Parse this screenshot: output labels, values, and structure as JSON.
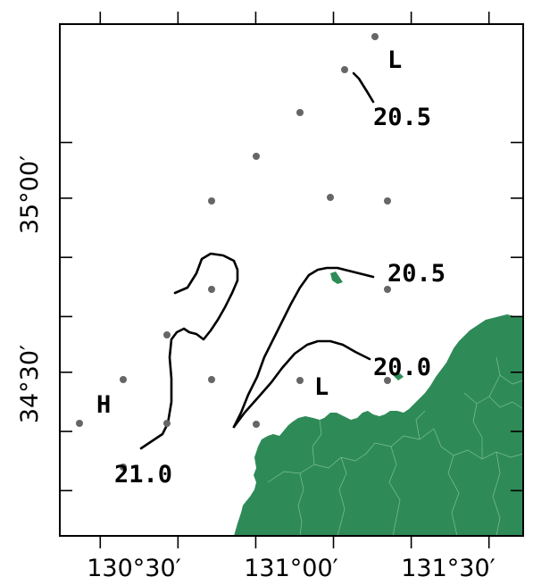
{
  "map": {
    "x_axis": {
      "ticks": [
        {
          "lon": 130.5,
          "label": "130°30′"
        },
        {
          "lon": 131.0,
          "label": "131°00′"
        },
        {
          "lon": 131.5,
          "label": "131°30′"
        }
      ],
      "minor_ticks": [
        130.25,
        130.5,
        130.75,
        131.0,
        131.25,
        131.5,
        131.75
      ]
    },
    "y_axis": {
      "ticks": [
        {
          "lat": 35.0,
          "label": "35°00′"
        },
        {
          "lat": 34.5,
          "label": "34°30′"
        }
      ],
      "minor_ticks": [
        34.33,
        34.5,
        34.67,
        34.83,
        35.0,
        35.17,
        35.33
      ]
    },
    "extent": {
      "lon_min": 130.12,
      "lon_max": 131.61,
      "lat_min": 34.2,
      "lat_max": 35.67
    },
    "labels": [
      {
        "id": "low-north",
        "text": "L",
        "lon": 131.35,
        "lat": 35.42
      },
      {
        "id": "contour-20-5-north",
        "text": "20.5",
        "lon": 131.38,
        "lat": 35.22
      },
      {
        "id": "contour-20-5-mid",
        "text": "20.5",
        "lon": 131.43,
        "lat": 34.78
      },
      {
        "id": "contour-20-0",
        "text": "20.0",
        "lon": 131.38,
        "lat": 34.55
      },
      {
        "id": "low-south",
        "text": "L",
        "lon": 131.1,
        "lat": 34.48
      },
      {
        "id": "high-west",
        "text": "H",
        "lon": 130.26,
        "lat": 34.44
      },
      {
        "id": "contour-21-0",
        "text": "21.0",
        "lon": 130.33,
        "lat": 34.27
      }
    ],
    "colors": {
      "land": "#2e8b57",
      "land_border": "#7fbf95",
      "station": "#666666",
      "contour": "#000000",
      "frame": "#000000"
    }
  }
}
